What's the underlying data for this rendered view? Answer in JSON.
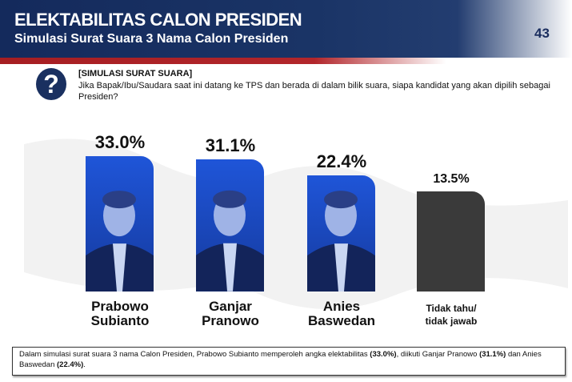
{
  "header": {
    "title": "ELEKTABILITAS CALON PRESIDEN",
    "subtitle": "Simulasi Surat Suara 3 Nama Calon Presiden",
    "page_number": "43"
  },
  "question": {
    "icon": "question-mark-icon",
    "tag": "[SIMULASI SURAT SUARA]",
    "text": "Jika Bapak/Ibu/Saudara saat ini datang ke TPS dan berada di dalam bilik suara, siapa kandidat yang akan dipilih sebagai Presiden?"
  },
  "chart_data": {
    "type": "bar",
    "categories": [
      "Prabowo Subianto",
      "Ganjar Pranowo",
      "Anies Baswedan",
      "Tidak tahu/ tidak jawab"
    ],
    "name_lines": [
      [
        "Prabowo",
        "Subianto"
      ],
      [
        "Ganjar",
        "Pranowo"
      ],
      [
        "Anies",
        "Baswedan"
      ],
      [
        "Tidak tahu/",
        "tidak jawab"
      ]
    ],
    "values": [
      33.0,
      31.1,
      22.4,
      13.5
    ],
    "labels": [
      "33.0%",
      "31.1%",
      "22.4%",
      "13.5%"
    ],
    "colors": [
      "#1f55d8",
      "#1f55d8",
      "#1f55d8",
      "#3a3a3a"
    ],
    "grid": false
  },
  "footer": {
    "text_1": "Dalam simulasi surat suara 3 nama Calon Presiden, Prabowo Subianto memperoleh angka elektabilitas ",
    "v1": "(33.0%)",
    "text_2": ", diikuti Ganjar Pranowo ",
    "v2": "(31.1%)",
    "text_3": " dan Anies Baswedan ",
    "v3": "(22.4%)",
    "text_4": "."
  }
}
